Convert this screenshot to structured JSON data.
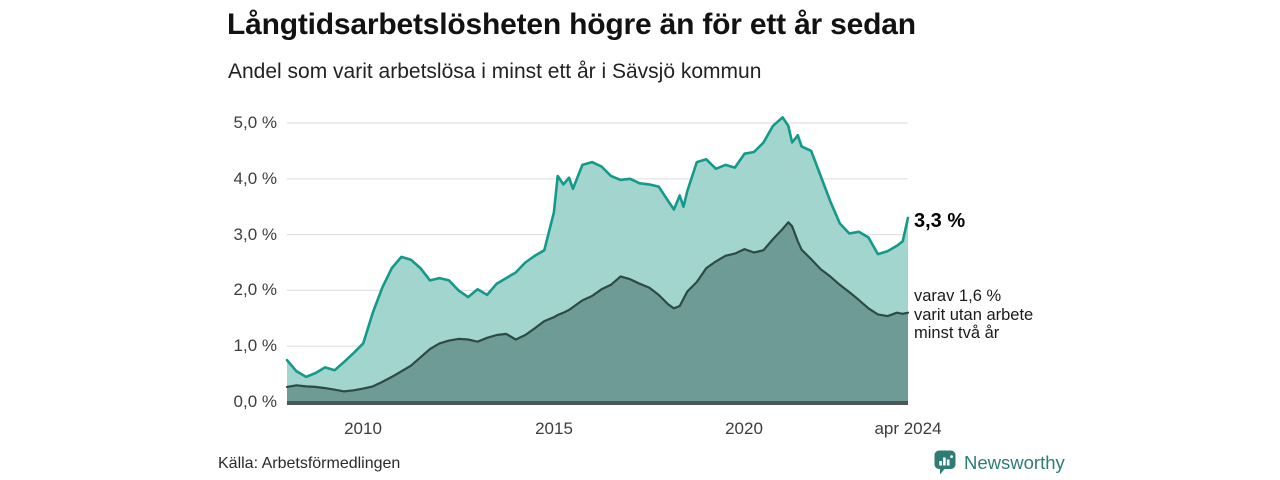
{
  "chart_data": {
    "type": "area",
    "title": "Långtidsarbetslösheten högre än för ett år sedan",
    "subtitle": "Andel som varit arbetslösa i minst ett år i Sävsjö kommun",
    "x_range": [
      2008.0,
      2024.29
    ],
    "ylim": [
      0,
      5.35
    ],
    "grid": true,
    "legend_position": "none",
    "y_ticks": [
      "0,0 %",
      "1,0 %",
      "2,0 %",
      "3,0 %",
      "4,0 %",
      "5,0 %"
    ],
    "y_tick_values": [
      0,
      1,
      2,
      3,
      4,
      5
    ],
    "x_ticks": [
      {
        "label": "2010",
        "x": 2010
      },
      {
        "label": "2015",
        "x": 2015
      },
      {
        "label": "2020",
        "x": 2020
      },
      {
        "label": "apr 2024",
        "x": 2024.29
      }
    ],
    "colors": {
      "grid": "#e2e2e2",
      "baseline": "#4d5855",
      "accent": "#2e7c74"
    },
    "x": [
      2008.0,
      2008.25,
      2008.5,
      2008.75,
      2009.0,
      2009.25,
      2009.5,
      2009.75,
      2010.0,
      2010.25,
      2010.5,
      2010.75,
      2011.0,
      2011.25,
      2011.5,
      2011.75,
      2012.0,
      2012.25,
      2012.5,
      2012.75,
      2013.0,
      2013.25,
      2013.5,
      2013.75,
      2014.0,
      2014.25,
      2014.5,
      2014.75,
      2015.0,
      2015.1,
      2015.25,
      2015.4,
      2015.5,
      2015.75,
      2016.0,
      2016.25,
      2016.5,
      2016.75,
      2017.0,
      2017.25,
      2017.5,
      2017.75,
      2018.0,
      2018.15,
      2018.3,
      2018.4,
      2018.5,
      2018.75,
      2019.0,
      2019.25,
      2019.5,
      2019.75,
      2020.0,
      2020.25,
      2020.5,
      2020.75,
      2021.0,
      2021.15,
      2021.25,
      2021.4,
      2021.5,
      2021.75,
      2022.0,
      2022.25,
      2022.5,
      2022.75,
      2023.0,
      2023.25,
      2023.5,
      2023.75,
      2024.0,
      2024.15,
      2024.29
    ],
    "series": [
      {
        "id": "minst-ett-ar",
        "color": "#14998a",
        "fill": "#a2d5ce",
        "end_value_pct": 3.3,
        "values": [
          0.75,
          0.55,
          0.45,
          0.52,
          0.62,
          0.57,
          0.72,
          0.88,
          1.05,
          1.6,
          2.05,
          2.4,
          2.6,
          2.55,
          2.4,
          2.18,
          2.22,
          2.18,
          2.0,
          1.88,
          2.02,
          1.92,
          2.12,
          2.22,
          2.32,
          2.5,
          2.62,
          2.72,
          3.4,
          4.05,
          3.9,
          4.02,
          3.82,
          4.25,
          4.3,
          4.22,
          4.05,
          3.98,
          4.0,
          3.92,
          3.9,
          3.86,
          3.6,
          3.45,
          3.7,
          3.5,
          3.78,
          4.3,
          4.35,
          4.18,
          4.25,
          4.2,
          4.45,
          4.48,
          4.65,
          4.95,
          5.1,
          4.95,
          4.65,
          4.78,
          4.58,
          4.5,
          4.05,
          3.6,
          3.2,
          3.02,
          3.05,
          2.95,
          2.65,
          2.7,
          2.8,
          2.88,
          3.3
        ]
      },
      {
        "id": "minst-tva-ar",
        "color": "#2e4a47",
        "fill": "#6f9b96",
        "end_value_pct": 1.6,
        "values": [
          0.27,
          0.3,
          0.28,
          0.27,
          0.25,
          0.22,
          0.19,
          0.21,
          0.24,
          0.28,
          0.36,
          0.45,
          0.55,
          0.65,
          0.8,
          0.95,
          1.05,
          1.1,
          1.13,
          1.12,
          1.08,
          1.15,
          1.2,
          1.22,
          1.12,
          1.2,
          1.32,
          1.45,
          1.52,
          1.56,
          1.6,
          1.65,
          1.7,
          1.82,
          1.9,
          2.02,
          2.1,
          2.25,
          2.2,
          2.12,
          2.05,
          1.92,
          1.75,
          1.68,
          1.72,
          1.85,
          1.98,
          2.15,
          2.4,
          2.52,
          2.62,
          2.66,
          2.74,
          2.68,
          2.72,
          2.92,
          3.1,
          3.22,
          3.15,
          2.88,
          2.73,
          2.56,
          2.38,
          2.25,
          2.1,
          1.97,
          1.83,
          1.68,
          1.57,
          1.54,
          1.6,
          1.58,
          1.6
        ]
      }
    ],
    "annotations": {
      "end_value": "3,3 %",
      "secondary_lines": [
        "varav 1,6 %",
        "varit utan arbete",
        "minst två år"
      ]
    },
    "source": "Källa: Arbetsförmedlingen"
  },
  "brand": {
    "name": "Newsworthy"
  }
}
